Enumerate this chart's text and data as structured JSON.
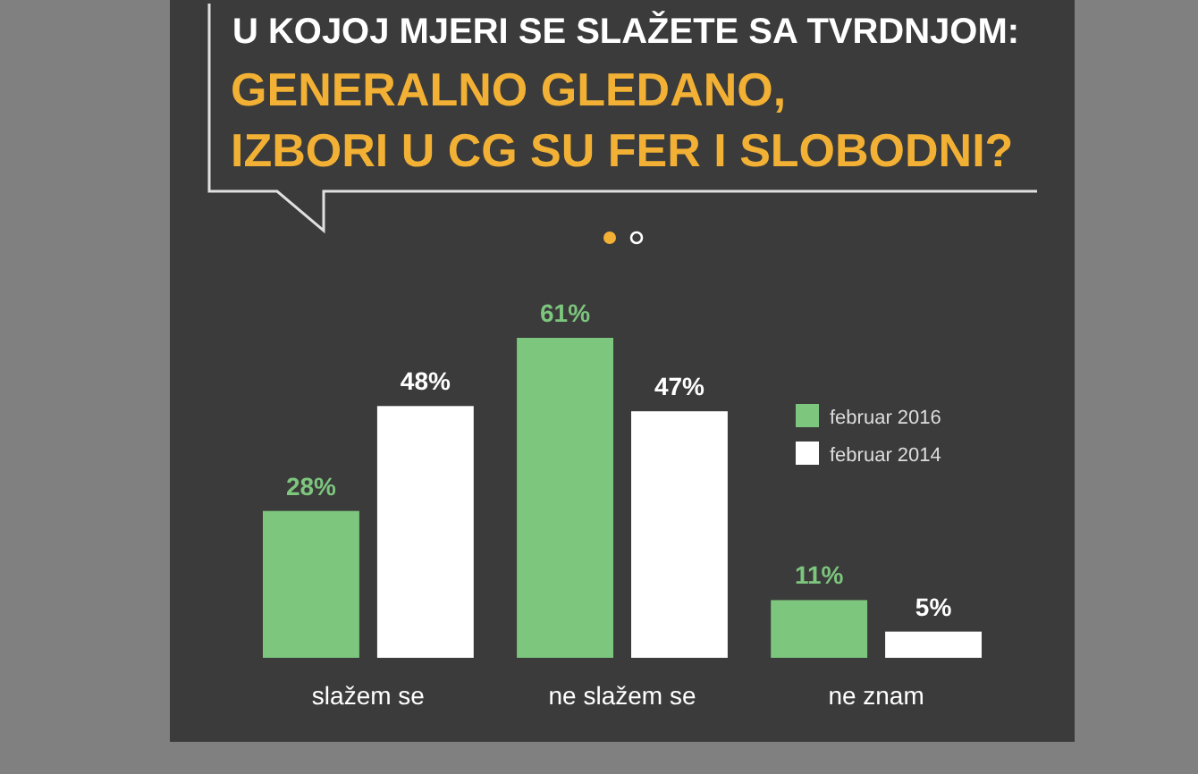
{
  "chart_data": {
    "type": "bar",
    "title": "U KOJOJ MJERI SE SLAŽETE SA TVRDNJOM:",
    "subtitle": "GENERALNO GLEDANO,\nIZBORI U CG SU FER I SLOBODNI?",
    "categories": [
      "slažem se",
      "ne slažem se",
      "ne znam"
    ],
    "series": [
      {
        "name": "februar 2016",
        "color": "#7dc67e",
        "values": [
          28,
          61,
          11
        ],
        "value_labels": [
          "28%",
          "61%",
          "11%"
        ]
      },
      {
        "name": "februar 2014",
        "color": "#ffffff",
        "values": [
          48,
          47,
          5
        ],
        "value_labels": [
          "48%",
          "47%",
          "5%"
        ]
      }
    ],
    "legend": "right"
  }
}
